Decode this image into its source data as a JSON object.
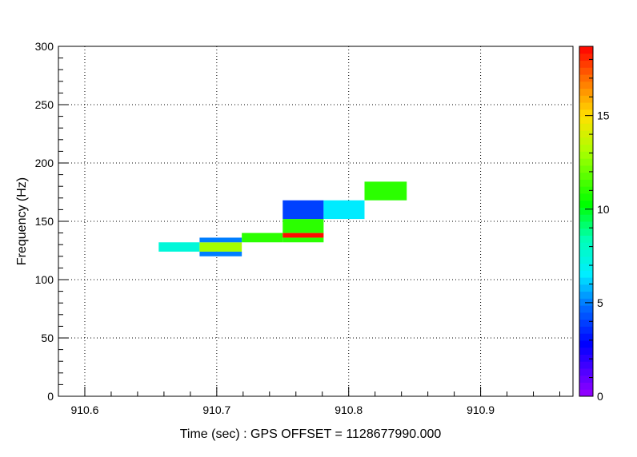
{
  "chart_data": {
    "type": "heatmap",
    "title": "",
    "xlabel": "Time (sec) : GPS OFFSET = 1128677990.000",
    "ylabel": "Frequency (Hz)",
    "xlim": [
      910.58,
      910.97
    ],
    "ylim": [
      0,
      300
    ],
    "x_ticks": [
      "910.6",
      "910.7",
      "910.8",
      "910.9"
    ],
    "x_tick_values": [
      910.6,
      910.7,
      910.8,
      910.9
    ],
    "y_ticks": [
      "0",
      "50",
      "100",
      "150",
      "200",
      "250",
      "300"
    ],
    "y_tick_values": [
      0,
      50,
      100,
      150,
      200,
      250,
      300
    ],
    "grid": true,
    "colorbar": {
      "range": [
        0,
        18.7
      ],
      "ticks": [
        "0",
        "5",
        "10",
        "15"
      ],
      "tick_values": [
        0,
        5,
        10,
        15
      ]
    },
    "tiles": [
      {
        "t0": 910.656,
        "t1": 910.687,
        "f0": 124,
        "f1": 132,
        "value": 7.5
      },
      {
        "t0": 910.687,
        "t1": 910.719,
        "f0": 120,
        "f1": 124,
        "value": 5.0
      },
      {
        "t0": 910.687,
        "t1": 910.719,
        "f0": 124,
        "f1": 132,
        "value": 13.0
      },
      {
        "t0": 910.687,
        "t1": 910.719,
        "f0": 132,
        "f1": 136,
        "value": 5.0
      },
      {
        "t0": 910.719,
        "t1": 910.75,
        "f0": 132,
        "f1": 140,
        "value": 11.0
      },
      {
        "t0": 910.75,
        "t1": 910.781,
        "f0": 132,
        "f1": 136,
        "value": 11.0
      },
      {
        "t0": 910.75,
        "t1": 910.781,
        "f0": 136,
        "f1": 140,
        "value": 18.5
      },
      {
        "t0": 910.75,
        "t1": 910.781,
        "f0": 140,
        "f1": 152,
        "value": 11.0
      },
      {
        "t0": 910.75,
        "t1": 910.781,
        "f0": 152,
        "f1": 168,
        "value": 4.0
      },
      {
        "t0": 910.781,
        "t1": 910.812,
        "f0": 152,
        "f1": 168,
        "value": 6.5
      },
      {
        "t0": 910.812,
        "t1": 910.844,
        "f0": 168,
        "f1": 184,
        "value": 11.0
      }
    ]
  }
}
